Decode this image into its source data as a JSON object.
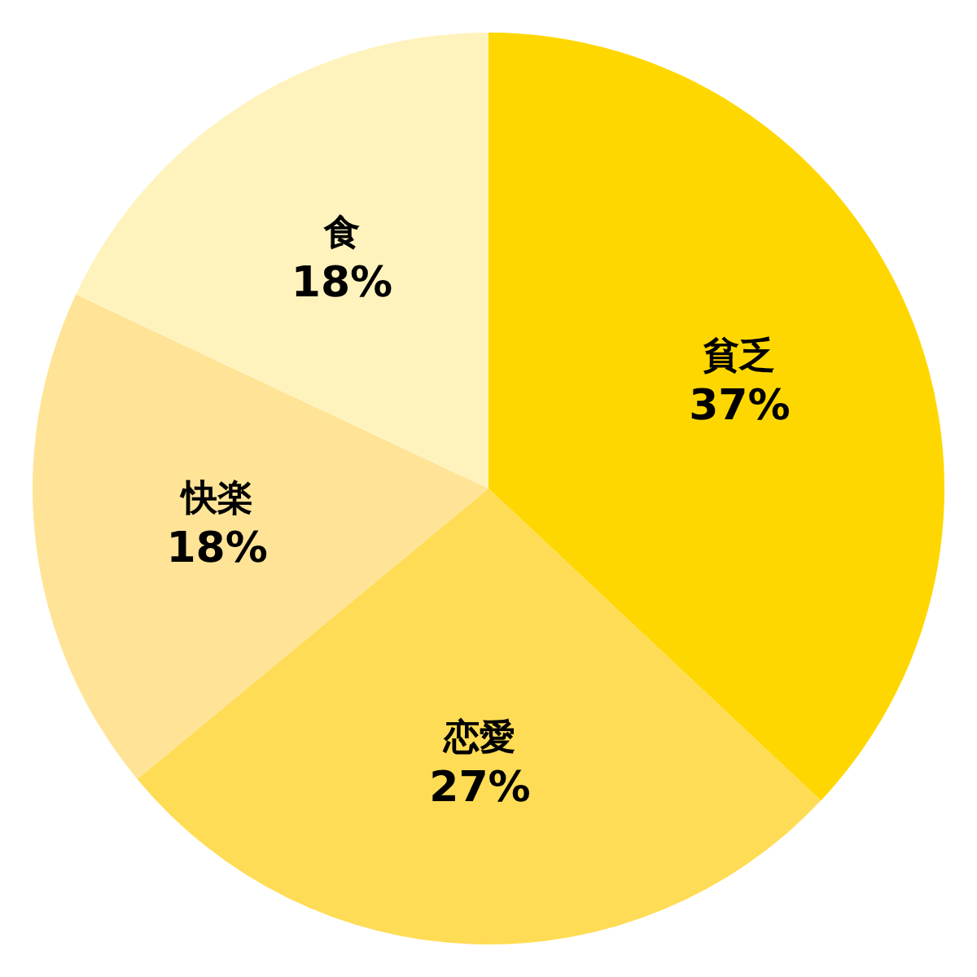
{
  "chart_data": {
    "type": "pie",
    "categories": [
      "貧乏",
      "恋愛",
      "快楽",
      "食"
    ],
    "values": [
      37,
      27,
      18,
      18
    ],
    "value_labels": [
      "37%",
      "27%",
      "18%",
      "18%"
    ],
    "colors": [
      "#ffd700",
      "#ffdc55",
      "#ffe497",
      "#fff3bd"
    ]
  }
}
